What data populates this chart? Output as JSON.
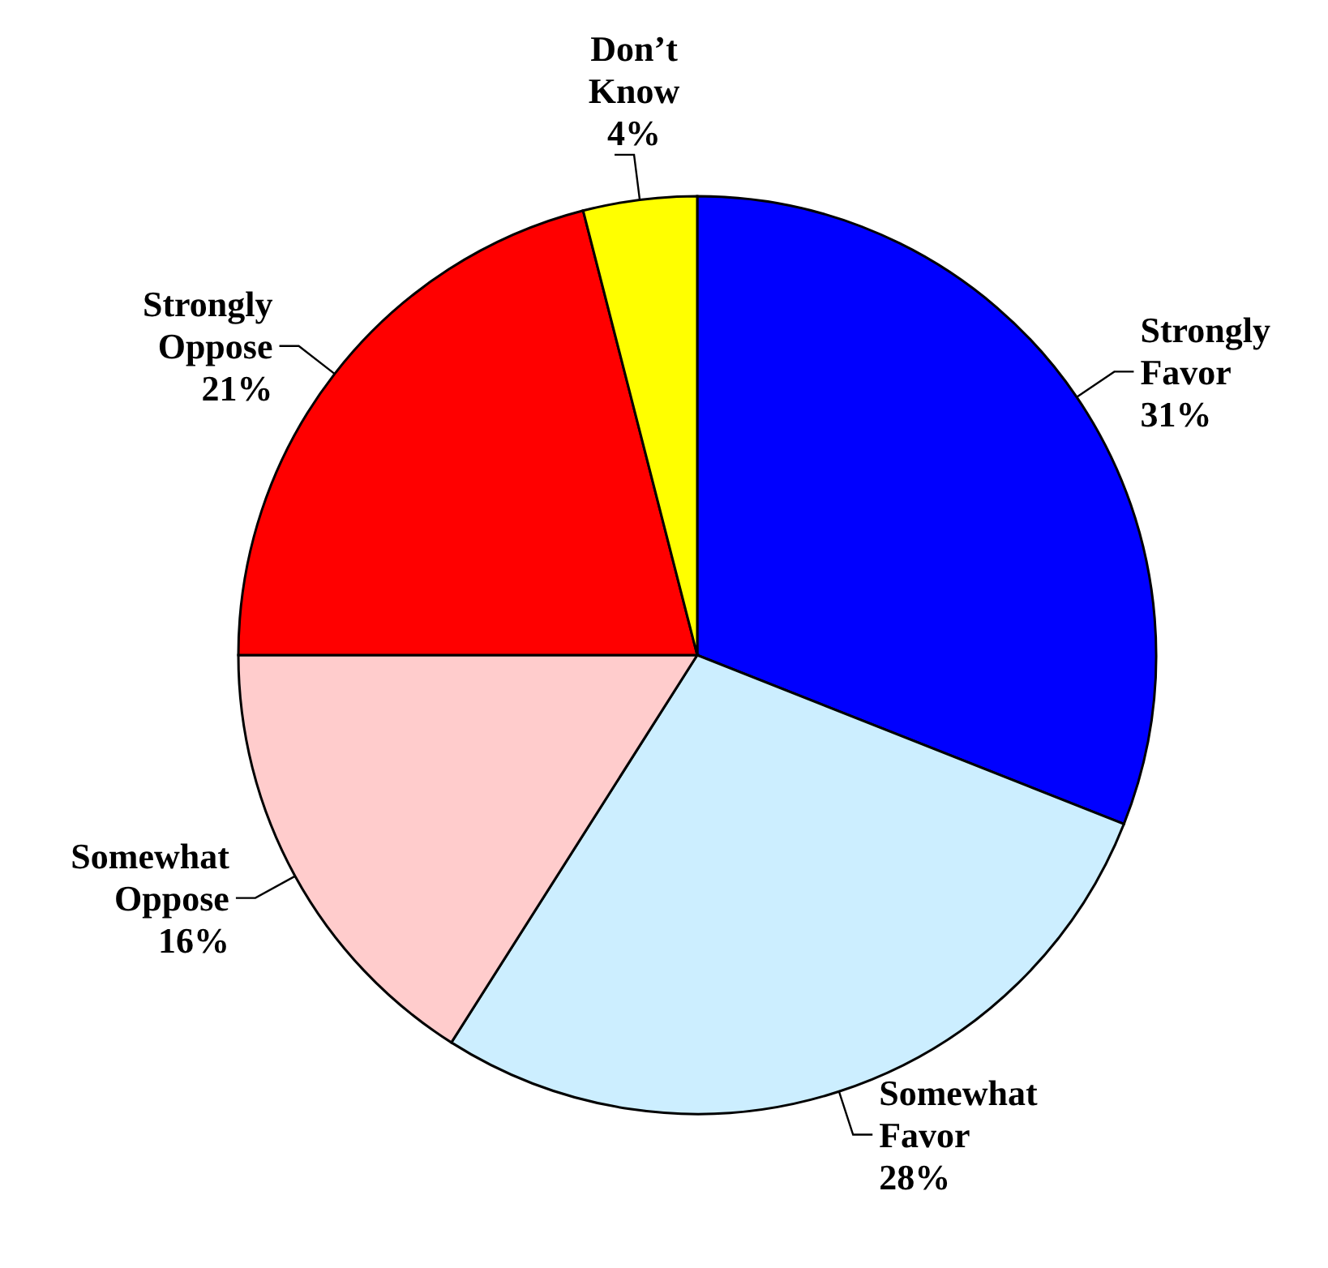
{
  "chart_data": {
    "type": "pie",
    "categories": [
      "Strongly Favor",
      "Somewhat Favor",
      "Somewhat Oppose",
      "Strongly Oppose",
      "Don’t Know"
    ],
    "values": [
      31,
      28,
      16,
      21,
      4
    ],
    "colors": [
      "#0000ff",
      "#cceeff",
      "#ffcccc",
      "#ff0000",
      "#ffff00"
    ],
    "value_labels": [
      "31%",
      "28%",
      "16%",
      "21%",
      "4%"
    ]
  }
}
